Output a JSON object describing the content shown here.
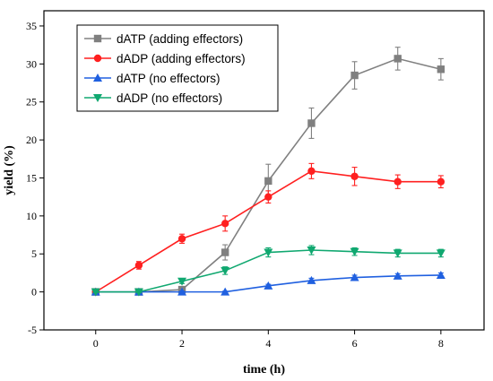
{
  "chart_data": {
    "type": "line",
    "xlabel": "time (h)",
    "ylabel": "yield (%)",
    "xlim": [
      -1.2,
      9.0
    ],
    "ylim": [
      -5,
      37
    ],
    "xticks": [
      0,
      2,
      4,
      6,
      8
    ],
    "yticks": [
      -5,
      0,
      5,
      10,
      15,
      20,
      25,
      30,
      35
    ],
    "legend_position": "top-left",
    "grid": false,
    "series": [
      {
        "name": "dATP (adding effectors)",
        "color": "#808080",
        "marker": "square",
        "x": [
          0,
          1,
          2,
          3,
          4,
          5,
          6,
          7,
          8
        ],
        "y": [
          0,
          0,
          0.3,
          5.2,
          14.6,
          22.2,
          28.5,
          30.7,
          29.3
        ],
        "error": [
          0.2,
          0.2,
          0.3,
          1.0,
          2.2,
          2.0,
          1.8,
          1.5,
          1.4
        ]
      },
      {
        "name": "dADP (adding effectors)",
        "color": "#ff2020",
        "marker": "circle",
        "x": [
          0,
          1,
          2,
          3,
          4,
          5,
          6,
          7,
          8
        ],
        "y": [
          0,
          3.5,
          7.0,
          9.0,
          12.5,
          15.9,
          15.2,
          14.5,
          14.5
        ],
        "error": [
          0.2,
          0.5,
          0.6,
          1.0,
          0.8,
          1.0,
          1.2,
          0.9,
          0.8
        ]
      },
      {
        "name": "dATP (no effectors)",
        "color": "#2060e0",
        "marker": "triangle-up",
        "x": [
          0,
          1,
          2,
          3,
          4,
          5,
          6,
          7,
          8
        ],
        "y": [
          0,
          0,
          0,
          0,
          0.8,
          1.5,
          1.9,
          2.1,
          2.2
        ],
        "error": [
          0.1,
          0.1,
          0.1,
          0.1,
          0.2,
          0.3,
          0.3,
          0.3,
          0.3
        ]
      },
      {
        "name": "dADP (no effectors)",
        "color": "#10a870",
        "marker": "triangle-down",
        "x": [
          0,
          1,
          2,
          3,
          4,
          5,
          6,
          7,
          8
        ],
        "y": [
          0,
          0,
          1.4,
          2.8,
          5.2,
          5.5,
          5.3,
          5.1,
          5.1
        ],
        "error": [
          0.1,
          0.1,
          0.3,
          0.5,
          0.6,
          0.6,
          0.5,
          0.5,
          0.5
        ]
      }
    ]
  }
}
